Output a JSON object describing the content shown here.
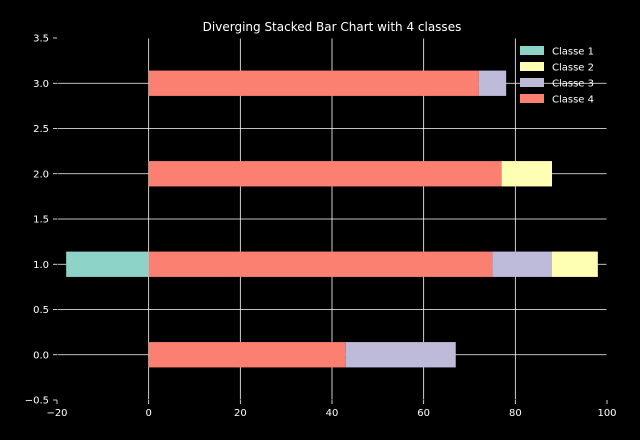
{
  "chart_data": {
    "type": "bar",
    "orientation": "horizontal",
    "stacking": "diverging",
    "title": "Diverging Stacked Bar Chart with 4 classes",
    "xlabel": "",
    "ylabel": "",
    "xlim": [
      -20,
      100
    ],
    "ylim": [
      -0.5,
      3.5
    ],
    "xticks": [
      -20,
      0,
      20,
      40,
      60,
      80,
      100
    ],
    "yticks": [
      -0.5,
      0.0,
      0.5,
      1.0,
      1.5,
      2.0,
      2.5,
      3.0,
      3.5
    ],
    "xtick_labels": [
      "−20",
      "0",
      "20",
      "40",
      "60",
      "80",
      "100"
    ],
    "ytick_labels": [
      "−0.5",
      "0.0",
      "0.5",
      "1.0",
      "1.5",
      "2.0",
      "2.5",
      "3.0",
      "3.5"
    ],
    "grid": true,
    "legend_position": "top-right",
    "categories": [
      0,
      1,
      2,
      3
    ],
    "bar_height": 0.28,
    "series": [
      {
        "name": "Classe 1",
        "color": "#8dd3c7",
        "values": [
          0,
          -18,
          0,
          0
        ]
      },
      {
        "name": "Classe 2",
        "color": "#ffffb3",
        "values": [
          0,
          10,
          11,
          0
        ]
      },
      {
        "name": "Classe 3",
        "color": "#bebada",
        "values": [
          24,
          13,
          0,
          6
        ]
      },
      {
        "name": "Classe 4",
        "color": "#fb8072",
        "values": [
          43,
          75,
          77,
          72
        ]
      }
    ],
    "segments": [
      {
        "series": "Classe 4",
        "y": 0,
        "start": 0,
        "end": 43
      },
      {
        "series": "Classe 3",
        "y": 0,
        "start": 43,
        "end": 67
      },
      {
        "series": "Classe 1",
        "y": 1,
        "start": -18,
        "end": 0
      },
      {
        "series": "Classe 4",
        "y": 1,
        "start": 0,
        "end": 75
      },
      {
        "series": "Classe 3",
        "y": 1,
        "start": 75,
        "end": 88
      },
      {
        "series": "Classe 2",
        "y": 1,
        "start": 88,
        "end": 98
      },
      {
        "series": "Classe 4",
        "y": 2,
        "start": 0,
        "end": 77
      },
      {
        "series": "Classe 2",
        "y": 2,
        "start": 77,
        "end": 88
      },
      {
        "series": "Classe 4",
        "y": 3,
        "start": 0,
        "end": 72
      },
      {
        "series": "Classe 3",
        "y": 3,
        "start": 72,
        "end": 78
      }
    ]
  },
  "colors": {
    "background": "#000000",
    "axes_background": "#000000",
    "grid": "#ffffff",
    "text": "#ffffff"
  }
}
